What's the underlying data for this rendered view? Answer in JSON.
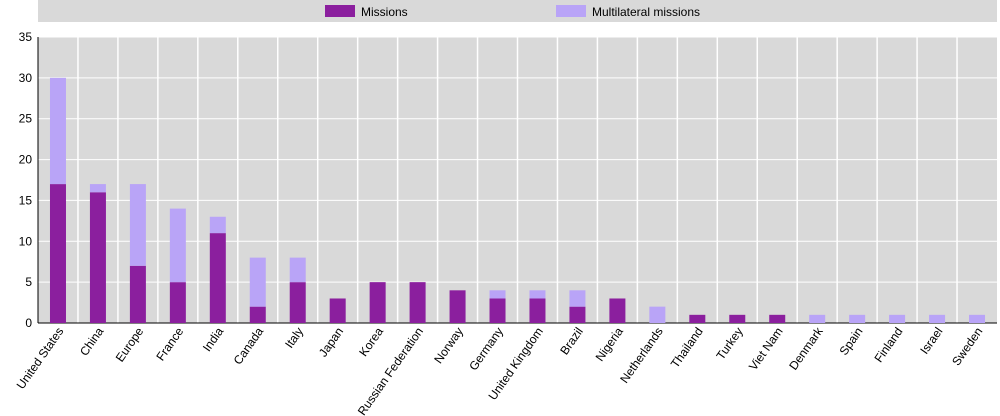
{
  "chart_data": {
    "type": "stacked-bar",
    "categories": [
      "United States",
      "China",
      "Europe",
      "France",
      "India",
      "Canada",
      "Italy",
      "Japan",
      "Korea",
      "Russian Federation",
      "Norway",
      "Germany",
      "United Kingdom",
      "Brazil",
      "Nigeria",
      "Netherlands",
      "Thailand",
      "Turkey",
      "Viet Nam",
      "Denmark",
      "Spain",
      "Finland",
      "Israel",
      "Sweden"
    ],
    "series": [
      {
        "name": "Missions",
        "color": "#8b1f9e",
        "values": [
          17,
          16,
          7,
          5,
          11,
          2,
          5,
          3,
          5,
          5,
          4,
          3,
          3,
          2,
          3,
          0,
          1,
          1,
          1,
          0,
          0,
          0,
          0,
          0
        ]
      },
      {
        "name": "Multilateral missions",
        "color": "#b9a4f7",
        "values": [
          13,
          1,
          10,
          9,
          2,
          6,
          3,
          0,
          0,
          0,
          0,
          1,
          1,
          2,
          0,
          2,
          0,
          0,
          0,
          1,
          1,
          1,
          1,
          1
        ]
      }
    ],
    "ylim": [
      0,
      35
    ],
    "yticks": [
      0,
      5,
      10,
      15,
      20,
      25,
      30,
      35
    ],
    "grid": true,
    "legend": "top"
  }
}
